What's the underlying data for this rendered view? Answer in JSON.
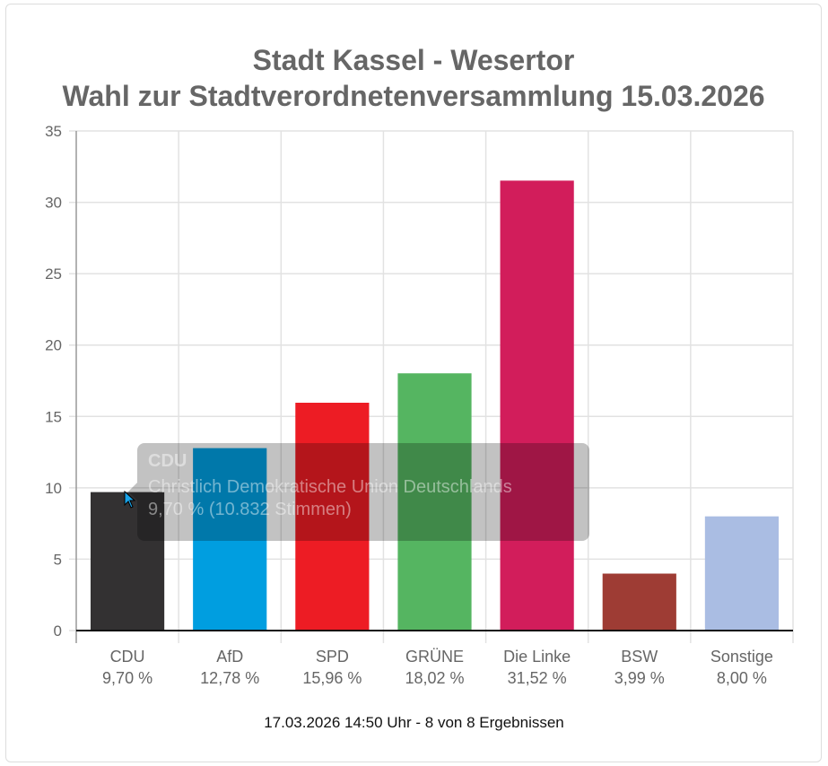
{
  "chart_data": {
    "type": "bar",
    "title": [
      "Stadt Kassel - Wesertor",
      "Wahl zur Stadtverordnetenversammlung 15.03.2026"
    ],
    "categories": [
      "CDU",
      "AfD",
      "SPD",
      "GRÜNE",
      "Die Linke",
      "BSW",
      "Sonstige"
    ],
    "value_labels": [
      "9,70 %",
      "12,78 %",
      "15,96 %",
      "18,02 %",
      "31,52 %",
      "3,99 %",
      "8,00 %"
    ],
    "values": [
      9.7,
      12.78,
      15.96,
      18.02,
      31.52,
      3.99,
      8.0
    ],
    "colors": [
      "#333132",
      "#009ee0",
      "#ed1c24",
      "#55b561",
      "#d21d5b",
      "#9e3c34",
      "#aabde3"
    ],
    "ylim": [
      0,
      35
    ],
    "yticks": [
      0,
      5,
      10,
      15,
      20,
      25,
      30,
      35
    ],
    "grid": true,
    "xlabel": "",
    "ylabel": ""
  },
  "tooltip": {
    "title": "CDU",
    "line1": "Christlich Demokratische Union Deutschlands",
    "line2": "9,70 % (10.832 Stimmen)"
  },
  "footer": "17.03.2026 14:50 Uhr - 8 von 8 Ergebnissen"
}
